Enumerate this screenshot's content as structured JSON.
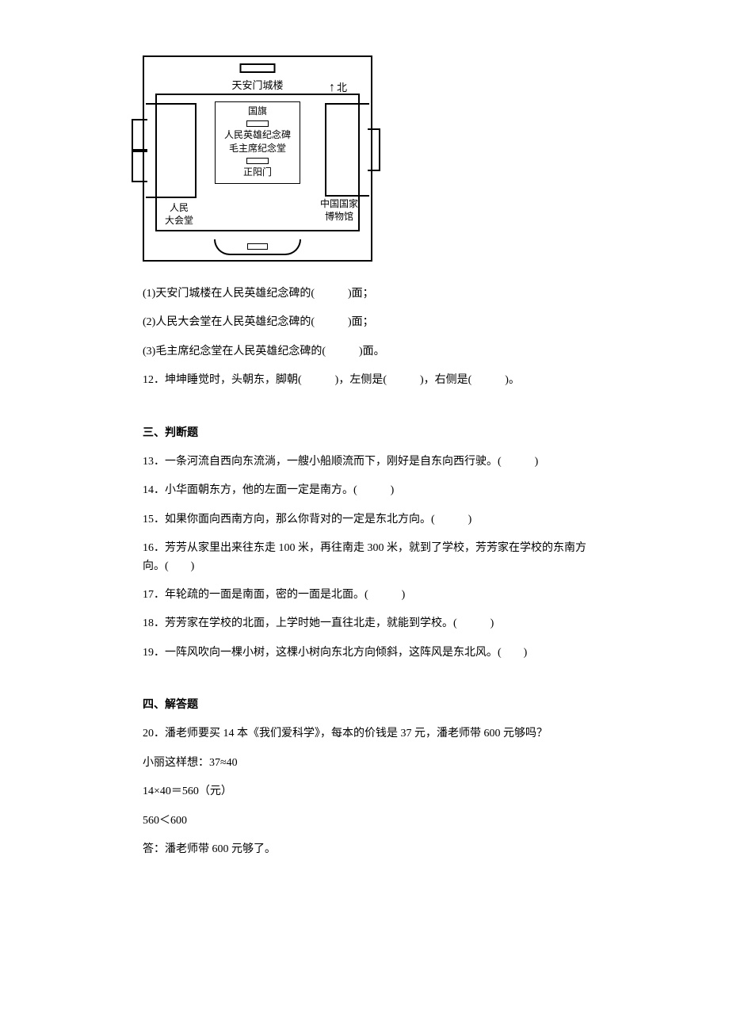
{
  "diagram": {
    "title_top": "天安门城楼",
    "north": "北",
    "center": {
      "l1": "国旗",
      "l2": "人民英雄纪念碑",
      "l3": "毛主席纪念堂",
      "l4": "正阳门"
    },
    "left_label_l1": "人民",
    "left_label_l2": "大会堂",
    "right_label_l1": "中国国家",
    "right_label_l2": "博物馆"
  },
  "q11_1": "(1)天安门城楼在人民英雄纪念碑的(　　　)面；",
  "q11_2": "(2)人民大会堂在人民英雄纪念碑的(　　　)面；",
  "q11_3": "(3)毛主席纪念堂在人民英雄纪念碑的(　　　)面。",
  "q12": "12．坤坤睡觉时，头朝东，脚朝(　　　)，左侧是(　　　)，右侧是(　　　)。",
  "section3_heading": "三、判断题",
  "q13": "13．一条河流自西向东流淌，一艘小船顺流而下，刚好是自东向西行驶。(　　　)",
  "q14": "14．小华面朝东方，他的左面一定是南方。(　　　)",
  "q15": "15．如果你面向西南方向，那么你背对的一定是东北方向。(　　　)",
  "q16": "16．芳芳从家里出来往东走 100 米，再往南走 300 米，就到了学校，芳芳家在学校的东南方向。(　　)",
  "q17": "17．年轮疏的一面是南面，密的一面是北面。(　　　)",
  "q18": "18．芳芳家在学校的北面，上学时她一直往北走，就能到学校。(　　　)",
  "q19": "19．一阵风吹向一棵小树，这棵小树向东北方向倾斜，这阵风是东北风。(　　)",
  "section4_heading": "四、解答题",
  "q20_line1": "20．潘老师要买 14 本《我们爱科学》，每本的价钱是 37 元，潘老师带 600 元够吗？",
  "q20_line2": "小丽这样想：37≈40",
  "q20_line3": "14×40＝560（元）",
  "q20_line4": "560＜600",
  "q20_line5": "答：潘老师带 600 元够了。"
}
